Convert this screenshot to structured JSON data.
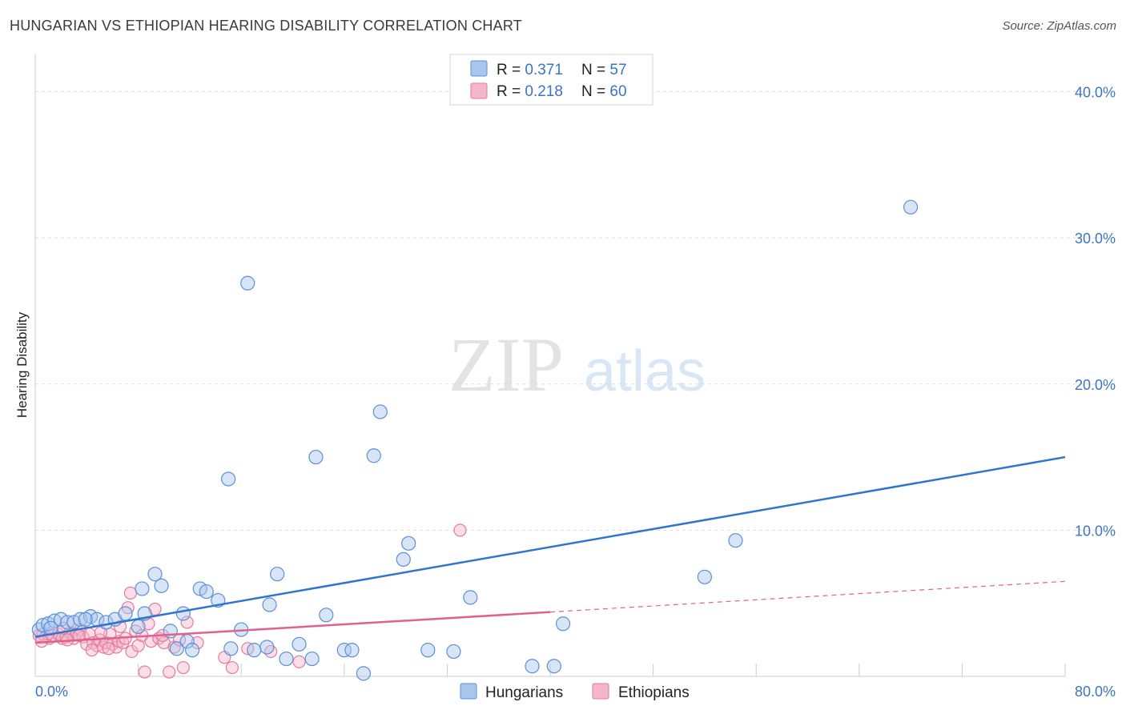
{
  "title": "HUNGARIAN VS ETHIOPIAN HEARING DISABILITY CORRELATION CHART",
  "source": "Source: ZipAtlas.com",
  "watermark": {
    "zip": "ZIP",
    "atlas": "atlas"
  },
  "colors": {
    "blue_fill": "#a9c5ee",
    "blue_stroke": "#5b8fd8",
    "blue_line": "#2f74d0",
    "pink_fill": "#f6b6c9",
    "pink_stroke": "#e27b9d",
    "pink_line": "#e0628c",
    "grid": "#dddddd",
    "tick": "#3b74c6"
  },
  "legend": {
    "rows": [
      {
        "r_label": "R = ",
        "r_value": "0.371",
        "n_label": "N = ",
        "n_value": "57"
      },
      {
        "r_label": "R = ",
        "r_value": "0.218",
        "n_label": "N = ",
        "n_value": "60"
      }
    ]
  },
  "chart_data": {
    "type": "scatter",
    "title": "HUNGARIAN VS ETHIOPIAN HEARING DISABILITY CORRELATION CHART",
    "xlabel": "",
    "ylabel": "Hearing Disability",
    "xlim": [
      0,
      80
    ],
    "ylim": [
      0,
      42
    ],
    "x_tick_labels": [
      {
        "value": 0,
        "label": "0.0%"
      },
      {
        "value": 80,
        "label": "80.0%"
      }
    ],
    "y_ticks": [
      {
        "value": 10,
        "label": "10.0%"
      },
      {
        "value": 20,
        "label": "20.0%"
      },
      {
        "value": 30,
        "label": "30.0%"
      },
      {
        "value": 40,
        "label": "40.0%"
      }
    ],
    "x_minor_ticks": [
      8,
      16,
      24,
      32,
      40,
      48,
      56,
      64,
      72,
      80
    ],
    "series": [
      {
        "name": "Hungarians",
        "r": 0.371,
        "n": 57,
        "trend": {
          "x": [
            0,
            80
          ],
          "y": [
            2.7,
            15.0
          ],
          "dashed_from": null
        },
        "points": [
          [
            0.3,
            3.2
          ],
          [
            0.6,
            3.5
          ],
          [
            1.0,
            3.6
          ],
          [
            1.5,
            3.8
          ],
          [
            2.0,
            3.9
          ],
          [
            2.5,
            3.7
          ],
          [
            3.0,
            3.7
          ],
          [
            3.5,
            3.9
          ],
          [
            4.3,
            4.1
          ],
          [
            4.8,
            3.9
          ],
          [
            5.5,
            3.7
          ],
          [
            6.2,
            3.9
          ],
          [
            7.0,
            4.3
          ],
          [
            8.0,
            3.4
          ],
          [
            8.5,
            4.3
          ],
          [
            8.3,
            6.0
          ],
          [
            9.3,
            7.0
          ],
          [
            9.8,
            6.2
          ],
          [
            11.5,
            4.3
          ],
          [
            10.5,
            3.1
          ],
          [
            11.0,
            1.9
          ],
          [
            11.8,
            2.4
          ],
          [
            12.2,
            1.8
          ],
          [
            12.8,
            6.0
          ],
          [
            13.3,
            5.8
          ],
          [
            14.2,
            5.2
          ],
          [
            15.0,
            13.5
          ],
          [
            15.2,
            1.9
          ],
          [
            16.0,
            3.2
          ],
          [
            16.5,
            26.9
          ],
          [
            17.0,
            1.8
          ],
          [
            18.0,
            2.0
          ],
          [
            18.2,
            4.9
          ],
          [
            18.8,
            7.0
          ],
          [
            19.5,
            1.2
          ],
          [
            20.5,
            2.2
          ],
          [
            21.5,
            1.2
          ],
          [
            21.8,
            15.0
          ],
          [
            22.6,
            4.2
          ],
          [
            24.0,
            1.8
          ],
          [
            24.6,
            1.8
          ],
          [
            25.5,
            0.2
          ],
          [
            26.3,
            15.1
          ],
          [
            26.8,
            18.1
          ],
          [
            28.6,
            8.0
          ],
          [
            29.0,
            9.1
          ],
          [
            30.5,
            1.8
          ],
          [
            32.5,
            1.7
          ],
          [
            33.8,
            5.4
          ],
          [
            38.6,
            0.7
          ],
          [
            40.3,
            0.7
          ],
          [
            41.0,
            3.6
          ],
          [
            52.0,
            6.8
          ],
          [
            54.4,
            9.3
          ],
          [
            68.0,
            32.1
          ],
          [
            3.9,
            3.9
          ],
          [
            1.2,
            3.3
          ]
        ]
      },
      {
        "name": "Ethiopians",
        "r": 0.218,
        "n": 60,
        "trend": {
          "x": [
            0,
            80
          ],
          "y": [
            2.3,
            6.5
          ],
          "dashed_from": 40
        },
        "points": [
          [
            0.3,
            2.8
          ],
          [
            0.6,
            2.9
          ],
          [
            0.8,
            2.7
          ],
          [
            1.1,
            2.6
          ],
          [
            1.4,
            2.8
          ],
          [
            1.8,
            2.9
          ],
          [
            2.1,
            2.6
          ],
          [
            2.4,
            2.7
          ],
          [
            2.7,
            3.0
          ],
          [
            3.0,
            2.6
          ],
          [
            3.2,
            2.9
          ],
          [
            3.5,
            3.2
          ],
          [
            3.7,
            2.7
          ],
          [
            4.0,
            2.2
          ],
          [
            4.2,
            2.9
          ],
          [
            4.5,
            2.3
          ],
          [
            4.8,
            2.1
          ],
          [
            5.0,
            2.5
          ],
          [
            5.3,
            2.0
          ],
          [
            5.5,
            2.3
          ],
          [
            5.8,
            2.9
          ],
          [
            6.0,
            2.2
          ],
          [
            6.3,
            2.0
          ],
          [
            6.5,
            2.4
          ],
          [
            6.8,
            2.3
          ],
          [
            7.0,
            2.6
          ],
          [
            7.2,
            4.7
          ],
          [
            7.5,
            1.7
          ],
          [
            7.8,
            3.1
          ],
          [
            8.0,
            2.1
          ],
          [
            8.3,
            2.8
          ],
          [
            8.5,
            0.3
          ],
          [
            8.8,
            3.6
          ],
          [
            9.0,
            2.4
          ],
          [
            9.3,
            4.6
          ],
          [
            9.6,
            2.6
          ],
          [
            10.0,
            2.3
          ],
          [
            10.4,
            0.3
          ],
          [
            10.8,
            2.0
          ],
          [
            11.2,
            2.5
          ],
          [
            11.5,
            0.6
          ],
          [
            11.8,
            3.7
          ],
          [
            12.6,
            2.3
          ],
          [
            14.7,
            1.3
          ],
          [
            15.3,
            0.6
          ],
          [
            16.5,
            1.9
          ],
          [
            18.3,
            1.7
          ],
          [
            20.5,
            1.0
          ],
          [
            33.0,
            10.0
          ],
          [
            2.5,
            2.5
          ],
          [
            1.0,
            2.9
          ],
          [
            3.4,
            2.8
          ],
          [
            5.1,
            3.0
          ],
          [
            6.6,
            3.4
          ],
          [
            2.2,
            3.3
          ],
          [
            4.4,
            1.8
          ],
          [
            5.7,
            1.9
          ],
          [
            7.4,
            5.7
          ],
          [
            9.9,
            2.8
          ],
          [
            0.5,
            2.4
          ]
        ]
      }
    ],
    "legend_placement": "bottom-center"
  },
  "bottom_legend": {
    "items": [
      "Hungarians",
      "Ethiopians"
    ]
  }
}
